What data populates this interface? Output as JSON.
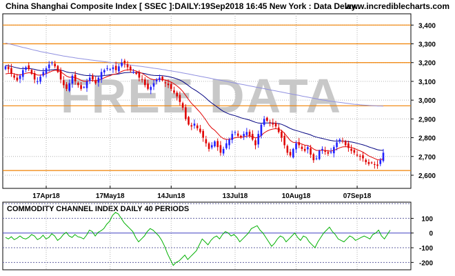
{
  "header": {
    "title": "China Shanghai Composite Index [ SSEC ]:DAILY:19Sep2018 16:45 New York : Data Delay..",
    "site": "www.incrediblecharts.com"
  },
  "watermark": "FREE DATA",
  "colors": {
    "up": "#2020ff",
    "down": "#e00000",
    "ema_short": "#e00000",
    "ema_long": "#000080",
    "ma_slow": "#9090e0",
    "levels": "#f08000",
    "cci_line": "#00b000",
    "cci_outer": "#6060a0",
    "cci_zero": "#4040c0",
    "grid": "#b0b0b0"
  },
  "chart_data": [
    {
      "type": "candlestick",
      "title": "China Shanghai Composite Index [ SSEC ]:DAILY:19Sep2018 16:45 New York : Data Delay..",
      "ylim": [
        2530,
        3460
      ],
      "y_ticks": [
        "2,600",
        "2,700",
        "2,800",
        "2,900",
        "3,000",
        "3,100",
        "3,200",
        "3,300",
        "3,400"
      ],
      "x_ticks": [
        "17Apr18",
        "17May18",
        "14Jun18",
        "13Jul18",
        "10Aug18",
        "07Sep18"
      ],
      "levels": [
        3400,
        3300,
        3200,
        2970,
        2625
      ],
      "close": [
        3180,
        3165,
        3140,
        3120,
        3105,
        3130,
        3160,
        3175,
        3165,
        3140,
        3110,
        3100,
        3125,
        3150,
        3170,
        3190,
        3200,
        3180,
        3150,
        3110,
        3080,
        3060,
        3090,
        3130,
        3100,
        3080,
        3060,
        3070,
        3100,
        3120,
        3110,
        3090,
        3120,
        3150,
        3160,
        3170,
        3165,
        3175,
        3160,
        3180,
        3200,
        3195,
        3175,
        3160,
        3150,
        3140,
        3120,
        3110,
        3080,
        3060,
        3070,
        3090,
        3110,
        3120,
        3105,
        3090,
        3080,
        3060,
        3040,
        3020,
        2990,
        2960,
        2900,
        2870,
        2860,
        2875,
        2850,
        2830,
        2800,
        2770,
        2740,
        2760,
        2780,
        2750,
        2720,
        2740,
        2770,
        2790,
        2820,
        2830,
        2810,
        2800,
        2820,
        2830,
        2810,
        2790,
        2760,
        2820,
        2870,
        2900,
        2890,
        2880,
        2870,
        2860,
        2830,
        2800,
        2760,
        2720,
        2705,
        2740,
        2770,
        2760,
        2740,
        2730,
        2750,
        2710,
        2680,
        2690,
        2730,
        2740,
        2725,
        2715,
        2725,
        2750,
        2775,
        2790,
        2780,
        2760,
        2745,
        2730,
        2720,
        2705,
        2700,
        2690,
        2670,
        2660,
        2665,
        2655,
        2650,
        2680,
        2720
      ],
      "ema_short": [
        3140,
        3142,
        3143,
        3140,
        3135,
        3134,
        3138,
        3143,
        3146,
        3145,
        3140,
        3134,
        3133,
        3136,
        3141,
        3148,
        3155,
        3159,
        3158,
        3151,
        3140,
        3128,
        3122,
        3123,
        3120,
        3114,
        3106,
        3101,
        3101,
        3104,
        3105,
        3103,
        3106,
        3112,
        3119,
        3126,
        3131,
        3137,
        3139,
        3145,
        3153,
        3159,
        3161,
        3161,
        3159,
        3155,
        3149,
        3143,
        3133,
        3121,
        3113,
        3109,
        3109,
        3111,
        3110,
        3107,
        3102,
        3096,
        3087,
        3076,
        3063,
        3047,
        3025,
        3003,
        2983,
        2968,
        2951,
        2934,
        2914,
        2892,
        2868,
        2851,
        2839,
        2823,
        2806,
        2795,
        2791,
        2791,
        2795,
        2800,
        2802,
        2802,
        2805,
        2809,
        2809,
        2806,
        2799,
        2802,
        2812,
        2826,
        2835,
        2842,
        2846,
        2848,
        2845,
        2838,
        2823,
        2804,
        2785,
        2775,
        2774,
        2771,
        2766,
        2760,
        2759,
        2751,
        2740,
        2732,
        2732,
        2733,
        2732,
        2729,
        2729,
        2732,
        2739,
        2746,
        2751,
        2752,
        2751,
        2748,
        2743,
        2736,
        2730,
        2723,
        2713,
        2703,
        2696,
        2689,
        2682,
        2682,
        2688
      ],
      "ema_long": [
        3185,
        3183,
        3180,
        3176,
        3172,
        3169,
        3168,
        3169,
        3169,
        3167,
        3164,
        3160,
        3158,
        3157,
        3158,
        3160,
        3162,
        3163,
        3163,
        3160,
        3156,
        3150,
        3147,
        3146,
        3144,
        3140,
        3136,
        3133,
        3131,
        3131,
        3130,
        3128,
        3128,
        3129,
        3131,
        3133,
        3135,
        3137,
        3138,
        3140,
        3143,
        3146,
        3147,
        3148,
        3148,
        3147,
        3146,
        3144,
        3141,
        3137,
        3134,
        3132,
        3131,
        3131,
        3130,
        3128,
        3126,
        3122,
        3118,
        3113,
        3107,
        3099,
        3088,
        3077,
        3065,
        3056,
        3046,
        3035,
        3024,
        3010,
        2996,
        2984,
        2973,
        2962,
        2950,
        2940,
        2932,
        2926,
        2921,
        2917,
        2912,
        2906,
        2902,
        2898,
        2894,
        2888,
        2882,
        2878,
        2877,
        2878,
        2878,
        2878,
        2878,
        2877,
        2875,
        2871,
        2865,
        2857,
        2849,
        2843,
        2838,
        2834,
        2829,
        2824,
        2820,
        2815,
        2808,
        2803,
        2799,
        2796,
        2792,
        2788,
        2785,
        2783,
        2782,
        2782,
        2782,
        2781,
        2779,
        2777,
        2774,
        2770,
        2766,
        2762,
        2757,
        2751,
        2746,
        2741,
        2736,
        2733,
        2732
      ],
      "ma_slow": [
        3305,
        3301,
        3297,
        3293,
        3289,
        3285,
        3281,
        3278,
        3274,
        3270,
        3266,
        3263,
        3259,
        3256,
        3253,
        3250,
        3247,
        3244,
        3241,
        3238,
        3235,
        3233,
        3230,
        3228,
        3225,
        3223,
        3221,
        3219,
        3217,
        3215,
        3213,
        3211,
        3209,
        3207,
        3205,
        3203,
        3201,
        3199,
        3197,
        3195,
        3193,
        3191,
        3189,
        3187,
        3185,
        3183,
        3181,
        3179,
        3177,
        3175,
        3172,
        3170,
        3168,
        3166,
        3163,
        3161,
        3158,
        3156,
        3153,
        3151,
        3148,
        3145,
        3142,
        3139,
        3136,
        3133,
        3130,
        3127,
        3124,
        3121,
        3118,
        3115,
        3112,
        3109,
        3106,
        3103,
        3100,
        3097,
        3094,
        3091,
        3088,
        3085,
        3082,
        3079,
        3076,
        3073,
        3070,
        3067,
        3064,
        3061,
        3058,
        3055,
        3052,
        3049,
        3046,
        3043,
        3040,
        3037,
        3034,
        3031,
        3028,
        3025,
        3022,
        3019,
        3016,
        3013,
        3010,
        3007,
        3004,
        3001,
        2999,
        2996,
        2994,
        2992,
        2990,
        2988,
        2986,
        2984,
        2982,
        2980,
        2978,
        2977,
        2975,
        2974,
        2973,
        2972,
        2971,
        2970,
        2969,
        2969,
        2968
      ]
    },
    {
      "type": "line",
      "title": "COMMODITY CHANNEL INDEX DAILY 40 PERIODS",
      "ylim": [
        -250,
        210
      ],
      "y_ticks": [
        "100",
        "0",
        "-100",
        "-200"
      ],
      "levels": [
        200,
        100,
        0,
        -100,
        -200
      ],
      "values": [
        -30,
        -40,
        -25,
        -45,
        -35,
        -20,
        -35,
        -40,
        -30,
        -10,
        -20,
        -45,
        -35,
        -15,
        -40,
        -30,
        -5,
        -20,
        -50,
        -35,
        -10,
        5,
        -20,
        -30,
        -10,
        -25,
        -30,
        -40,
        -15,
        20,
        10,
        -20,
        5,
        15,
        30,
        60,
        80,
        120,
        140,
        130,
        100,
        70,
        50,
        30,
        10,
        -30,
        -60,
        -40,
        -20,
        10,
        30,
        20,
        0,
        -20,
        -50,
        -90,
        -140,
        -180,
        -220,
        -200,
        -190,
        -170,
        -150,
        -180,
        -160,
        -140,
        -120,
        -80,
        -40,
        -60,
        -80,
        -50,
        -30,
        -20,
        -40,
        -10,
        10,
        0,
        -20,
        -10,
        -30,
        -60,
        -40,
        -20,
        0,
        30,
        40,
        50,
        20,
        0,
        -30,
        -60,
        -90,
        -70,
        -40,
        -20,
        -30,
        -60,
        -40,
        -20,
        0,
        -30,
        -50,
        -20,
        -30,
        -60,
        -80,
        -100,
        -60,
        -30,
        0,
        20,
        40,
        10,
        -10,
        -40,
        -50,
        -60,
        -40,
        -20,
        -30,
        -50,
        -40,
        -30,
        -20,
        -30,
        -40,
        -10,
        0,
        20,
        -20,
        -40,
        -10,
        20
      ]
    }
  ]
}
